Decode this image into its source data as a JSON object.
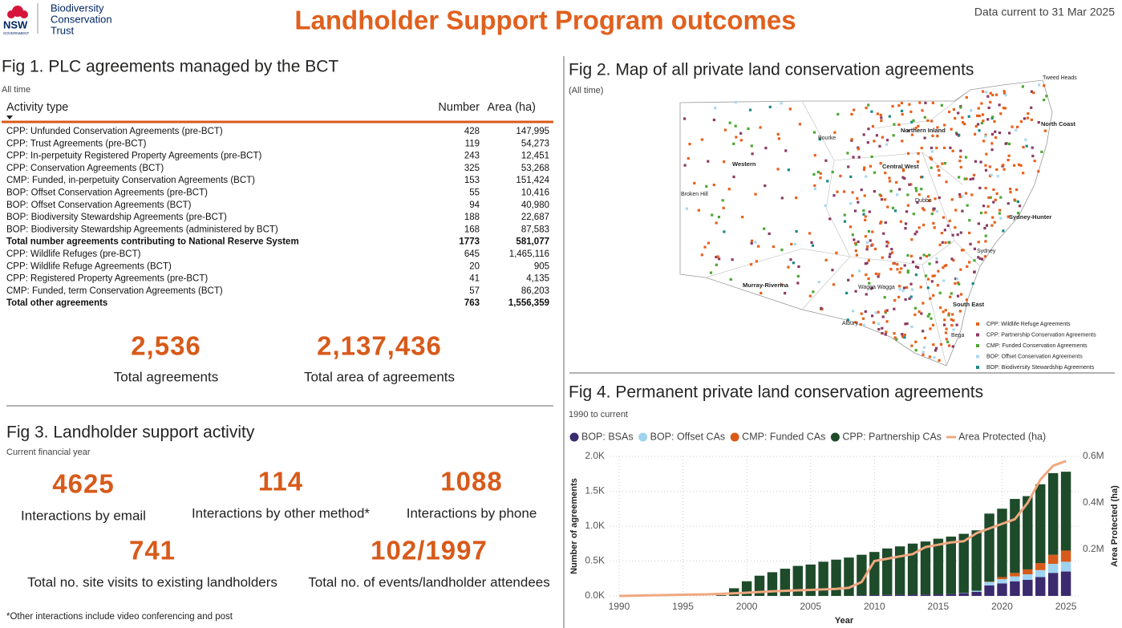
{
  "header": {
    "logo_nsw": "NSW",
    "logo_gov": "GOVERNMENT",
    "logo_org": [
      "Biodiversity",
      "Conservation",
      "Trust"
    ],
    "title": "Landholder Support Program outcomes",
    "data_current": "Data current to 31 Mar 2025"
  },
  "fig1": {
    "title": "Fig 1. PLC agreements managed by the BCT",
    "subtitle": "All time",
    "columns": [
      "Activity type",
      "Number",
      "Area (ha)"
    ],
    "rows": [
      {
        "name": "CPP: Unfunded Conservation Agreements (pre-BCT)",
        "number": "428",
        "area": "147,995"
      },
      {
        "name": "CPP: Trust Agreements (pre-BCT)",
        "number": "119",
        "area": "54,273"
      },
      {
        "name": "CPP: In-perpetuity Registered Property Agreements (pre-BCT)",
        "number": "243",
        "area": "12,451"
      },
      {
        "name": "CPP: Conservation Agreements (BCT)",
        "number": "325",
        "area": "53,268"
      },
      {
        "name": "CMP: Funded, in-perpetuity Conservation Agreements (BCT)",
        "number": "153",
        "area": "151,424"
      },
      {
        "name": "BOP: Offset Conservation Agreements (pre-BCT)",
        "number": "55",
        "area": "10,416"
      },
      {
        "name": "BOP: Offset Conservation Agreements (BCT)",
        "number": "94",
        "area": "40,980"
      },
      {
        "name": "BOP: Biodiversity Stewardship Agreements (pre-BCT)",
        "number": "188",
        "area": "22,687"
      },
      {
        "name": "BOP: Biodiversity Stewardship Agreements (administered by BCT)",
        "number": "168",
        "area": "87,583"
      },
      {
        "name": "Total number agreements contributing to National Reserve System",
        "number": "1773",
        "area": "581,077",
        "bold": true
      },
      {
        "name": "CPP: Wildlife Refuges (pre-BCT)",
        "number": "645",
        "area": "1,465,116"
      },
      {
        "name": "CPP: Wildlife Refuge Agreements (BCT)",
        "number": "20",
        "area": "905"
      },
      {
        "name": "CPP: Registered Property Agreements (pre-BCT)",
        "number": "41",
        "area": "4,135"
      },
      {
        "name": "CMP: Funded, term Conservation Agreements (BCT)",
        "number": "57",
        "area": "86,203"
      },
      {
        "name": "Total other agreements",
        "number": "763",
        "area": "1,556,359",
        "bold": true
      }
    ],
    "kpis": [
      {
        "value": "2,536",
        "label": "Total agreements"
      },
      {
        "value": "2,137,436",
        "label": "Total area of agreements"
      }
    ]
  },
  "fig2": {
    "title": "Fig 2. Map of all private land conservation agreements",
    "subtitle": "(All time)",
    "places": [
      "Tweed Heads",
      "North Coast",
      "Northern Inland",
      "Bourke",
      "Western",
      "Central West",
      "Broken Hill",
      "Dubbo",
      "Sydney-Hunter",
      "Sydney",
      "Murray-Riverina",
      "Wagga Wagga",
      "South East",
      "Albury",
      "Bega"
    ],
    "legend": [
      {
        "label": "CPP: Wildlife Refuge Agreements",
        "color": "#e8601c"
      },
      {
        "label": "CPP: Partnership Conservation Agreements",
        "color": "#8b3a62"
      },
      {
        "label": "CMP: Funded Conservation Agreements",
        "color": "#4aa832"
      },
      {
        "label": "BOP: Offset Conservation Agreements",
        "color": "#a8d8f0"
      },
      {
        "label": "BOP: Biodiversity Stewardship Agreements",
        "color": "#1a8a8a"
      }
    ]
  },
  "fig3": {
    "title": "Fig 3. Landholder support activity",
    "subtitle": "Current financial year",
    "kpis": [
      {
        "value": "4625",
        "label": "Interactions by email"
      },
      {
        "value": "114",
        "label": "Interactions by other method*"
      },
      {
        "value": "1088",
        "label": "Interactions by phone"
      },
      {
        "value": "741",
        "label": "Total no. site visits to existing landholders"
      },
      {
        "value": "102/1997",
        "label": "Total no. of events/landholder attendees"
      }
    ],
    "footnote": "*Other interactions include video conferencing and post"
  },
  "chart_data": {
    "type": "bar",
    "stacked": true,
    "title": "Fig 4. Permanent private land conservation agreements",
    "subtitle": "1990 to current",
    "x_label": "Year",
    "y_label": "Number of agreements",
    "y2_label": "Area Protected (ha)",
    "x": [
      1990,
      1991,
      1992,
      1993,
      1994,
      1995,
      1996,
      1997,
      1998,
      1999,
      2000,
      2001,
      2002,
      2003,
      2004,
      2005,
      2006,
      2007,
      2008,
      2009,
      2010,
      2011,
      2012,
      2013,
      2014,
      2015,
      2016,
      2017,
      2018,
      2019,
      2020,
      2021,
      2022,
      2023,
      2024,
      2025
    ],
    "xlim": [
      1989.25,
      2026
    ],
    "xticks": [
      1990,
      1995,
      2000,
      2005,
      2010,
      2015,
      2020,
      2025
    ],
    "ylim": [
      0,
      2000
    ],
    "yticks": [
      {
        "value": 0,
        "label": "0.0K"
      },
      {
        "value": 500,
        "label": "0.5K"
      },
      {
        "value": 1000,
        "label": "1.0K"
      },
      {
        "value": 1500,
        "label": "1.5K"
      },
      {
        "value": 2000,
        "label": "2.0K"
      }
    ],
    "y2lim": [
      0,
      600000
    ],
    "y2ticks": [
      {
        "value": 200000,
        "label": "0.2M"
      },
      {
        "value": 400000,
        "label": "0.4M"
      },
      {
        "value": 600000,
        "label": "0.6M"
      }
    ],
    "grid": true,
    "legend": "top-left",
    "series": [
      {
        "name": "BOP: BSAs",
        "color": "#3b2a6e",
        "values": [
          0,
          0,
          0,
          0,
          0,
          0,
          0,
          0,
          0,
          0,
          0,
          0,
          0,
          0,
          0,
          0,
          0,
          0,
          0,
          10,
          12,
          14,
          16,
          18,
          20,
          22,
          25,
          40,
          60,
          150,
          180,
          210,
          230,
          270,
          330,
          350
        ]
      },
      {
        "name": "BOP: Offset CAs",
        "color": "#9fd3f0",
        "values": [
          0,
          0,
          0,
          0,
          0,
          0,
          0,
          0,
          0,
          0,
          0,
          0,
          0,
          0,
          0,
          0,
          0,
          0,
          0,
          0,
          0,
          0,
          0,
          0,
          0,
          0,
          0,
          5,
          15,
          50,
          60,
          70,
          80,
          100,
          130,
          140
        ]
      },
      {
        "name": "CMP: Funded CAs",
        "color": "#d85a1a",
        "values": [
          0,
          0,
          0,
          0,
          0,
          0,
          0,
          0,
          0,
          0,
          0,
          0,
          0,
          0,
          0,
          0,
          0,
          0,
          0,
          0,
          0,
          0,
          0,
          0,
          0,
          0,
          0,
          0,
          0,
          5,
          30,
          50,
          70,
          100,
          130,
          160
        ]
      },
      {
        "name": "CPP: Partnership CAs",
        "color": "#1e4b2a",
        "values": [
          0,
          0,
          0,
          0,
          0,
          0,
          0,
          0,
          10,
          110,
          210,
          290,
          340,
          390,
          430,
          450,
          490,
          520,
          550,
          580,
          618,
          666,
          694,
          732,
          760,
          798,
          825,
          845,
          865,
          975,
          980,
          1060,
          1050,
          1130,
          1170,
          1130
        ]
      },
      {
        "name": "Area Protected (ha)",
        "color": "#f0a880",
        "type": "line",
        "axis": "y2",
        "values": [
          0,
          1000,
          2000,
          3000,
          4000,
          5000,
          6000,
          7000,
          9000,
          11000,
          14000,
          17000,
          20000,
          22000,
          24000,
          26000,
          28000,
          30000,
          35000,
          60000,
          150000,
          160000,
          170000,
          180000,
          210000,
          220000,
          230000,
          235000,
          270000,
          290000,
          310000,
          330000,
          400000,
          500000,
          560000,
          580000
        ]
      }
    ]
  }
}
